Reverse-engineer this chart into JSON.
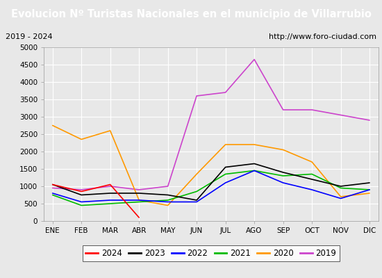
{
  "title": "Evolucion Nº Turistas Nacionales en el municipio de Villarrubio",
  "subtitle_left": "2019 - 2024",
  "subtitle_right": "http://www.foro-ciudad.com",
  "months": [
    "ENE",
    "FEB",
    "MAR",
    "ABR",
    "MAY",
    "JUN",
    "JUL",
    "AGO",
    "SEP",
    "OCT",
    "NOV",
    "DIC"
  ],
  "ylim": [
    0,
    5000
  ],
  "yticks": [
    0,
    500,
    1000,
    1500,
    2000,
    2500,
    3000,
    3500,
    4000,
    4500,
    5000
  ],
  "series": {
    "2024": {
      "color": "#ff0000",
      "data": [
        1050,
        850,
        1050,
        100,
        null,
        null,
        null,
        null,
        null,
        null,
        null,
        null
      ]
    },
    "2023": {
      "color": "#000000",
      "data": [
        1050,
        750,
        800,
        800,
        750,
        600,
        1550,
        1650,
        1400,
        1200,
        1000,
        1100
      ]
    },
    "2022": {
      "color": "#0000ff",
      "data": [
        800,
        550,
        600,
        600,
        550,
        550,
        1100,
        1450,
        1100,
        900,
        650,
        900
      ]
    },
    "2021": {
      "color": "#00bb00",
      "data": [
        750,
        450,
        500,
        550,
        600,
        850,
        1350,
        1450,
        1300,
        1350,
        950,
        900
      ]
    },
    "2020": {
      "color": "#ff9900",
      "data": [
        2750,
        2350,
        2600,
        600,
        450,
        1350,
        2200,
        2200,
        2050,
        1700,
        700,
        800
      ]
    },
    "2019": {
      "color": "#cc44cc",
      "data": [
        950,
        900,
        1000,
        900,
        1000,
        3600,
        3700,
        4650,
        3200,
        3200,
        3050,
        2900
      ]
    }
  },
  "background_color": "#e8e8e8",
  "title_bg_color": "#4472c4",
  "title_color": "#ffffff",
  "plot_bg_color": "#e8e8e8",
  "grid_color": "#ffffff"
}
